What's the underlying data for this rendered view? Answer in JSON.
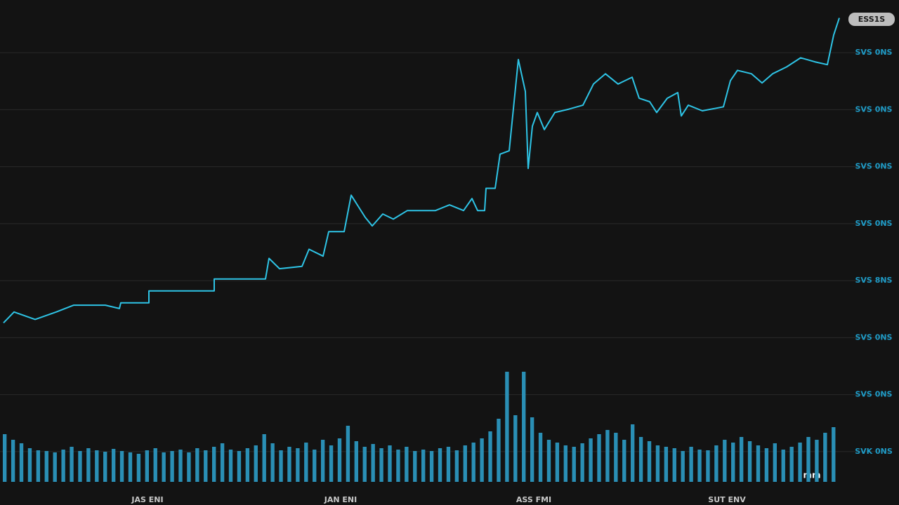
{
  "chart_data": {
    "type": "line",
    "badge": "ESS1S",
    "annotation": "mm",
    "color": "#2ec4e6",
    "x": [
      5,
      20,
      50,
      80,
      105,
      150,
      170,
      172,
      212,
      212,
      305,
      305,
      378,
      383,
      398,
      430,
      440,
      460,
      468,
      490,
      500,
      520,
      530,
      545,
      560,
      580,
      620,
      640,
      660,
      672,
      680,
      690,
      692,
      705,
      712,
      725,
      738,
      748,
      752,
      758,
      765,
      775,
      790,
      810,
      830,
      845,
      862,
      880,
      900,
      910,
      925,
      935,
      950,
      965,
      970,
      980,
      1000,
      1030,
      1040,
      1050,
      1070,
      1085,
      1100,
      1120,
      1140,
      1160,
      1178,
      1187,
      1195
    ],
    "values": [
      2.26,
      2.45,
      2.32,
      2.45,
      2.57,
      2.57,
      2.51,
      2.61,
      2.61,
      2.82,
      2.82,
      3.03,
      3.03,
      3.39,
      3.21,
      3.25,
      3.55,
      3.43,
      3.86,
      3.86,
      4.5,
      4.11,
      3.96,
      4.17,
      4.08,
      4.23,
      4.23,
      4.33,
      4.23,
      4.44,
      4.23,
      4.23,
      4.62,
      4.62,
      5.22,
      5.28,
      6.88,
      6.32,
      4.97,
      5.71,
      5.95,
      5.65,
      5.95,
      6.01,
      6.08,
      6.45,
      6.63,
      6.45,
      6.57,
      6.2,
      6.14,
      5.95,
      6.2,
      6.3,
      5.89,
      6.08,
      5.98,
      6.05,
      6.51,
      6.69,
      6.63,
      6.47,
      6.63,
      6.75,
      6.91,
      6.84,
      6.79,
      7.31,
      7.61
    ],
    "volume": {
      "color": "#2a8fb5",
      "axis": "y2",
      "values": [
        68,
        60,
        55,
        48,
        45,
        44,
        42,
        46,
        50,
        44,
        48,
        45,
        43,
        47,
        44,
        42,
        40,
        45,
        48,
        42,
        44,
        46,
        42,
        48,
        45,
        50,
        55,
        46,
        44,
        48,
        52,
        68,
        55,
        45,
        50,
        48,
        56,
        46,
        60,
        52,
        62,
        80,
        58,
        50,
        54,
        48,
        52,
        46,
        50,
        44,
        46,
        44,
        48,
        50,
        45,
        52,
        56,
        62,
        72,
        90,
        157,
        95,
        157,
        92,
        70,
        60,
        56,
        52,
        50,
        55,
        62,
        68,
        74,
        70,
        60,
        82,
        64,
        58,
        52,
        50,
        48,
        44,
        50,
        46,
        45,
        52,
        60,
        56,
        64,
        58,
        52,
        48,
        55,
        46,
        50,
        56,
        64,
        60,
        70,
        78
      ]
    },
    "xlim": [
      0,
      1200
    ],
    "xticks": [
      {
        "value": 210,
        "label": "JAS ENI"
      },
      {
        "value": 485,
        "label": "JAN ENI"
      },
      {
        "value": 760,
        "label": "ASS FMI"
      },
      {
        "value": 1035,
        "label": "SUT ENV"
      }
    ],
    "ylim": [
      -0.9,
      7.9
    ],
    "yticks": [
      {
        "value": 0,
        "label": "SVK 0NS"
      },
      {
        "value": 1,
        "label": "SVS 0NS"
      },
      {
        "value": 2,
        "label": "SVS 0NS"
      },
      {
        "value": 3,
        "label": "SVS 8NS"
      },
      {
        "value": 4,
        "label": "SVS 0NS"
      },
      {
        "value": 5,
        "label": "SVS 0NS"
      },
      {
        "value": 6,
        "label": "SVS 0NS"
      },
      {
        "value": 7,
        "label": "SVS 0NS"
      }
    ],
    "y2lim": [
      0,
      160
    ],
    "grid": true
  }
}
